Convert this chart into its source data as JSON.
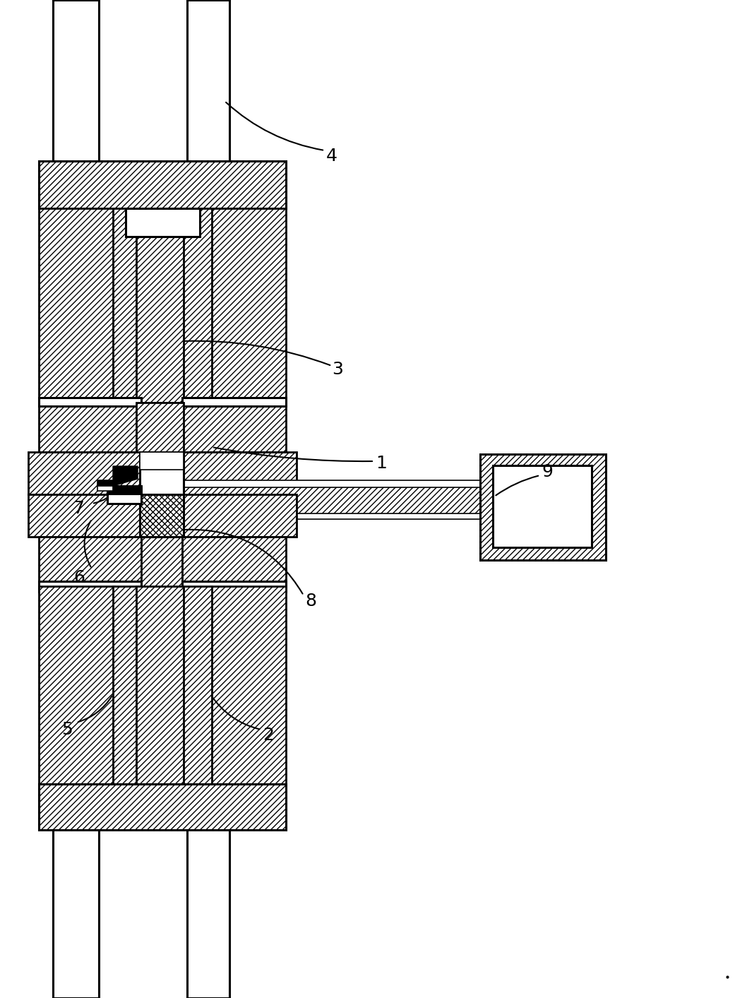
{
  "bg_color": "#ffffff",
  "line_color": "#000000",
  "fig_width": 10.58,
  "fig_height": 14.13,
  "dpi": 100,
  "ann_fontsize": 18,
  "lw_main": 2.2,
  "lw_thin": 1.2
}
